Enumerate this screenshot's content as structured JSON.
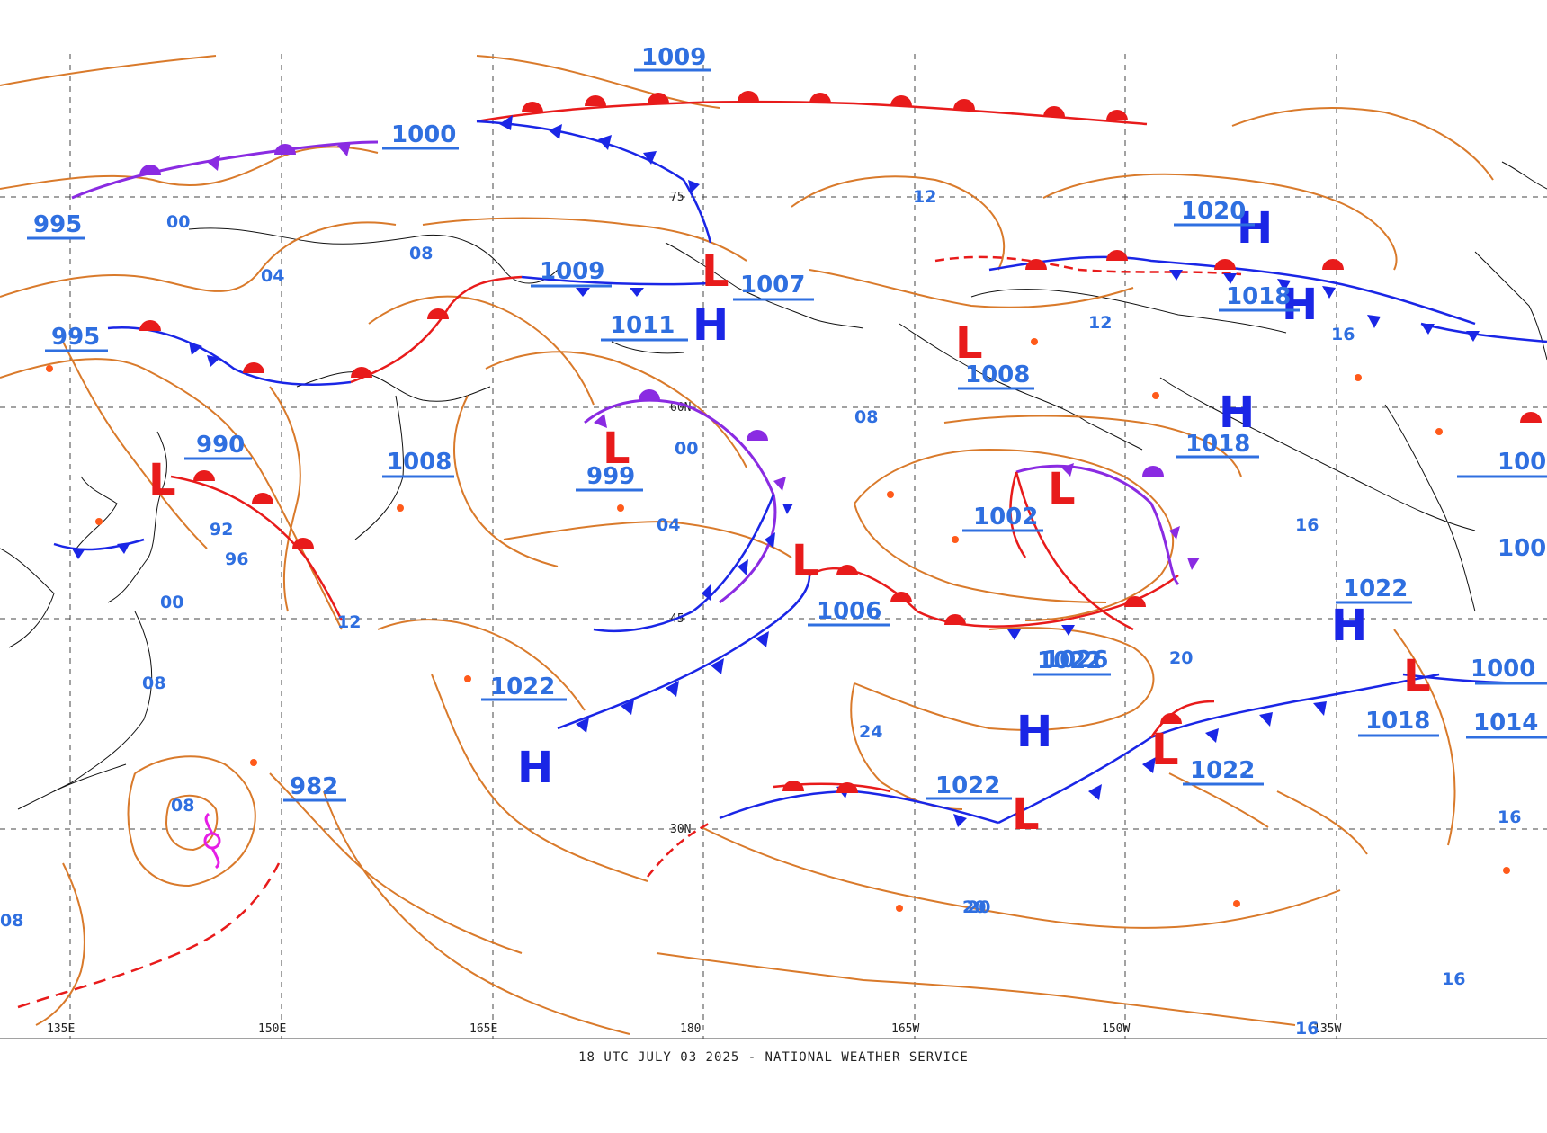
{
  "footer": "18 UTC JULY 03 2025 - NATIONAL WEATHER SERVICE",
  "colors": {
    "isobar": "#d97a2b",
    "high": "#1a26e6",
    "low": "#e81b1b",
    "cold_front": "#1a26e6",
    "warm_front": "#e81b1b",
    "occluded_front": "#8a2be2",
    "center_label": "#2f6fe0",
    "grid": "#444444",
    "coast": "#111111",
    "tropical": "#e61ee6"
  },
  "grid": {
    "longitude_labels": [
      "135E",
      "150E",
      "165E",
      "180",
      "165W",
      "150W",
      "135W"
    ],
    "latitude_labels": [
      "75",
      "60N",
      "45",
      "30N"
    ]
  },
  "pressure_centers": [
    {
      "type": "H",
      "pressure": "1022"
    },
    {
      "type": "H",
      "pressure": "1022"
    },
    {
      "type": "H",
      "pressure": "1011"
    },
    {
      "type": "H",
      "pressure": "1020"
    },
    {
      "type": "H",
      "pressure": "1018"
    },
    {
      "type": "H",
      "pressure": "1018"
    },
    {
      "type": "H",
      "pressure": "1022"
    },
    {
      "type": "L",
      "pressure": "990"
    },
    {
      "type": "L",
      "pressure": "999"
    },
    {
      "type": "L",
      "pressure": "1007"
    },
    {
      "type": "L",
      "pressure": "1006"
    },
    {
      "type": "L",
      "pressure": "1008"
    },
    {
      "type": "L",
      "pressure": "1002"
    },
    {
      "type": "L",
      "pressure": "1022"
    },
    {
      "type": "L",
      "pressure": "1022"
    },
    {
      "type": "L",
      "pressure": "1018"
    }
  ],
  "other_labels": [
    "1009",
    "1000",
    "995",
    "995",
    "1009",
    "1008",
    "982",
    "1026",
    "1014",
    "100",
    "100",
    "1000"
  ],
  "isobar_values": [
    "00",
    "04",
    "08",
    "12",
    "16",
    "20",
    "24",
    "92",
    "96",
    "00",
    "08",
    "12",
    "16",
    "20",
    "16",
    "16",
    "16",
    "04",
    "00",
    "08",
    "12",
    "08",
    "08",
    "20"
  ],
  "tropical_symbol": "tropical-storm-icon"
}
